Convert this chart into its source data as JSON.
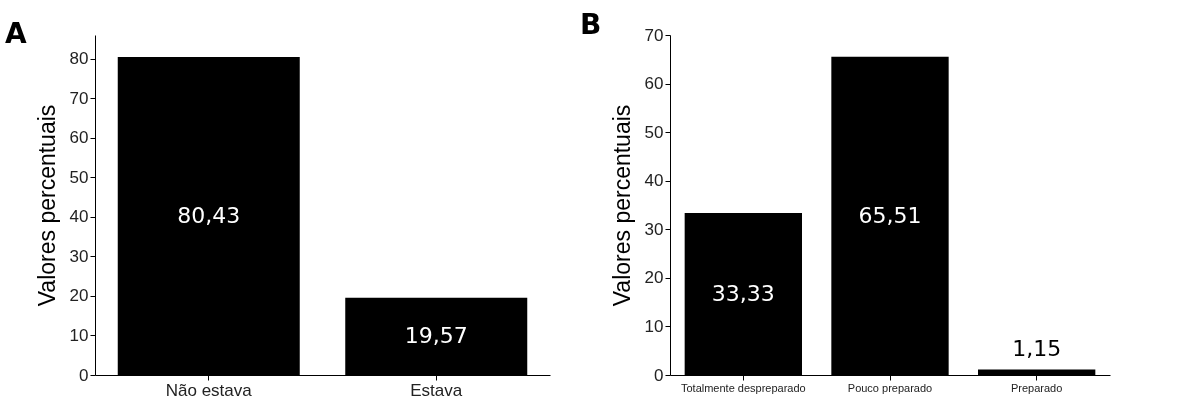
{
  "chart_data": [
    {
      "type": "bar",
      "title": "A",
      "ylabel": "Valores percentuais",
      "categories": [
        "Não estava",
        "Estava"
      ],
      "values": [
        80.43,
        19.57
      ],
      "value_labels": [
        "80,43",
        "19,57"
      ],
      "color": "#000000",
      "ylim": [
        0,
        86
      ],
      "yticks": [
        0,
        10,
        20,
        30,
        40,
        50,
        60,
        70,
        80
      ],
      "grid": false
    },
    {
      "type": "bar",
      "title": "B",
      "ylabel": "Valores percentuais",
      "categories": [
        "Totalmente despreparado",
        "Pouco preparado",
        "Preparado"
      ],
      "values": [
        33.33,
        65.51,
        1.15
      ],
      "value_labels": [
        "33,33",
        "65,51",
        "1,15"
      ],
      "color": "#000000",
      "ylim": [
        0,
        70
      ],
      "yticks": [
        0,
        10,
        20,
        30,
        40,
        50,
        60,
        70
      ],
      "grid": false
    }
  ]
}
